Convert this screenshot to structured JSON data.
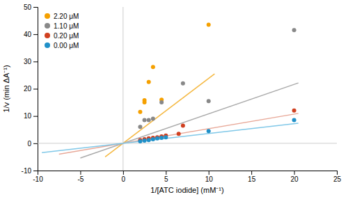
{
  "chart_data": {
    "type": "scatter",
    "xlabel": "1/[ATC iodide] (mM⁻¹)",
    "ylabel": "1/v (min ΔA⁻¹)",
    "xlim": [
      -10,
      25
    ],
    "ylim": [
      -10,
      50
    ],
    "xticks": [
      -10,
      -5,
      0,
      5,
      10,
      15,
      20,
      25
    ],
    "yticks": [
      -10,
      0,
      10,
      20,
      30,
      40,
      50
    ],
    "legend": "upper left",
    "series": [
      {
        "type": "line",
        "color": "#F5B840",
        "x": [
          -2.1,
          10.7
        ],
        "values": [
          -4.998,
          25.466
        ]
      },
      {
        "type": "scatter",
        "name": "2.20 μM",
        "color": "#F5A000",
        "x": [
          2.0,
          2.5,
          2.5,
          3.0,
          3.5,
          4.5,
          10.0
        ],
        "values": [
          11.5,
          15.0,
          15.8,
          22.5,
          28.0,
          16.0,
          43.5
        ]
      },
      {
        "type": "line",
        "color": "#aaaaaa",
        "x": [
          -5.0,
          20.5
        ],
        "values": [
          -5.4,
          22.14
        ]
      },
      {
        "type": "scatter",
        "name": "1.10 μM",
        "color": "#888888",
        "x": [
          2.0,
          2.5,
          3.0,
          3.5,
          4.5,
          7.0,
          10.0,
          20.0
        ],
        "values": [
          6.0,
          8.5,
          8.5,
          9.0,
          15.0,
          22.0,
          15.5,
          41.5
        ]
      },
      {
        "type": "line",
        "color": "#E8A898",
        "x": [
          -7.5,
          20.5
        ],
        "values": [
          -4.0125,
          10.9675
        ]
      },
      {
        "type": "scatter",
        "name": "0.20 μM",
        "color": "#D04020",
        "x": [
          2.0,
          2.5,
          3.0,
          3.5,
          4.0,
          4.5,
          5.0,
          6.5,
          7.0,
          20.0
        ],
        "values": [
          1.2,
          1.5,
          1.8,
          2.0,
          2.2,
          2.5,
          2.8,
          3.5,
          6.5,
          12.0
        ]
      },
      {
        "type": "line",
        "color": "#80C8E8",
        "x": [
          -9.5,
          20.5
        ],
        "values": [
          -3.42,
          7.38
        ]
      },
      {
        "type": "scatter",
        "name": "0.00 μM",
        "color": "#2090C8",
        "x": [
          2.0,
          2.5,
          3.0,
          3.5,
          4.0,
          4.5,
          5.0,
          10.0,
          20.0
        ],
        "values": [
          0.7,
          1.0,
          1.2,
          1.5,
          1.8,
          2.0,
          2.2,
          4.5,
          8.5
        ]
      }
    ]
  }
}
